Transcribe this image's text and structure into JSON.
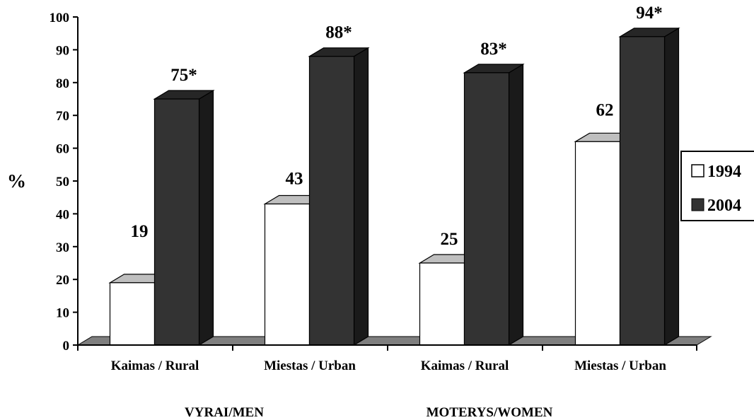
{
  "chart_data": {
    "type": "bar",
    "ylabel": "%",
    "ylim": [
      0,
      100
    ],
    "yticks": [
      0,
      10,
      20,
      30,
      40,
      50,
      60,
      70,
      80,
      90,
      100
    ],
    "categories": [
      "Kaimas / Rural",
      "Miestas / Urban",
      "Kaimas / Rural",
      "Miestas / Urban"
    ],
    "groups": [
      "VYRAI/MEN",
      "MOTERYS/WOMEN"
    ],
    "series": [
      {
        "name": "1994",
        "values": [
          19,
          43,
          25,
          62
        ],
        "labels": [
          "19",
          "43",
          "25",
          "62"
        ],
        "color": "#ffffff"
      },
      {
        "name": "2004",
        "values": [
          75,
          88,
          83,
          94
        ],
        "labels": [
          "75*",
          "88*",
          "83*",
          "94*"
        ],
        "color": "#333333"
      }
    ],
    "legend": "right",
    "style": "3d",
    "grid": false
  }
}
